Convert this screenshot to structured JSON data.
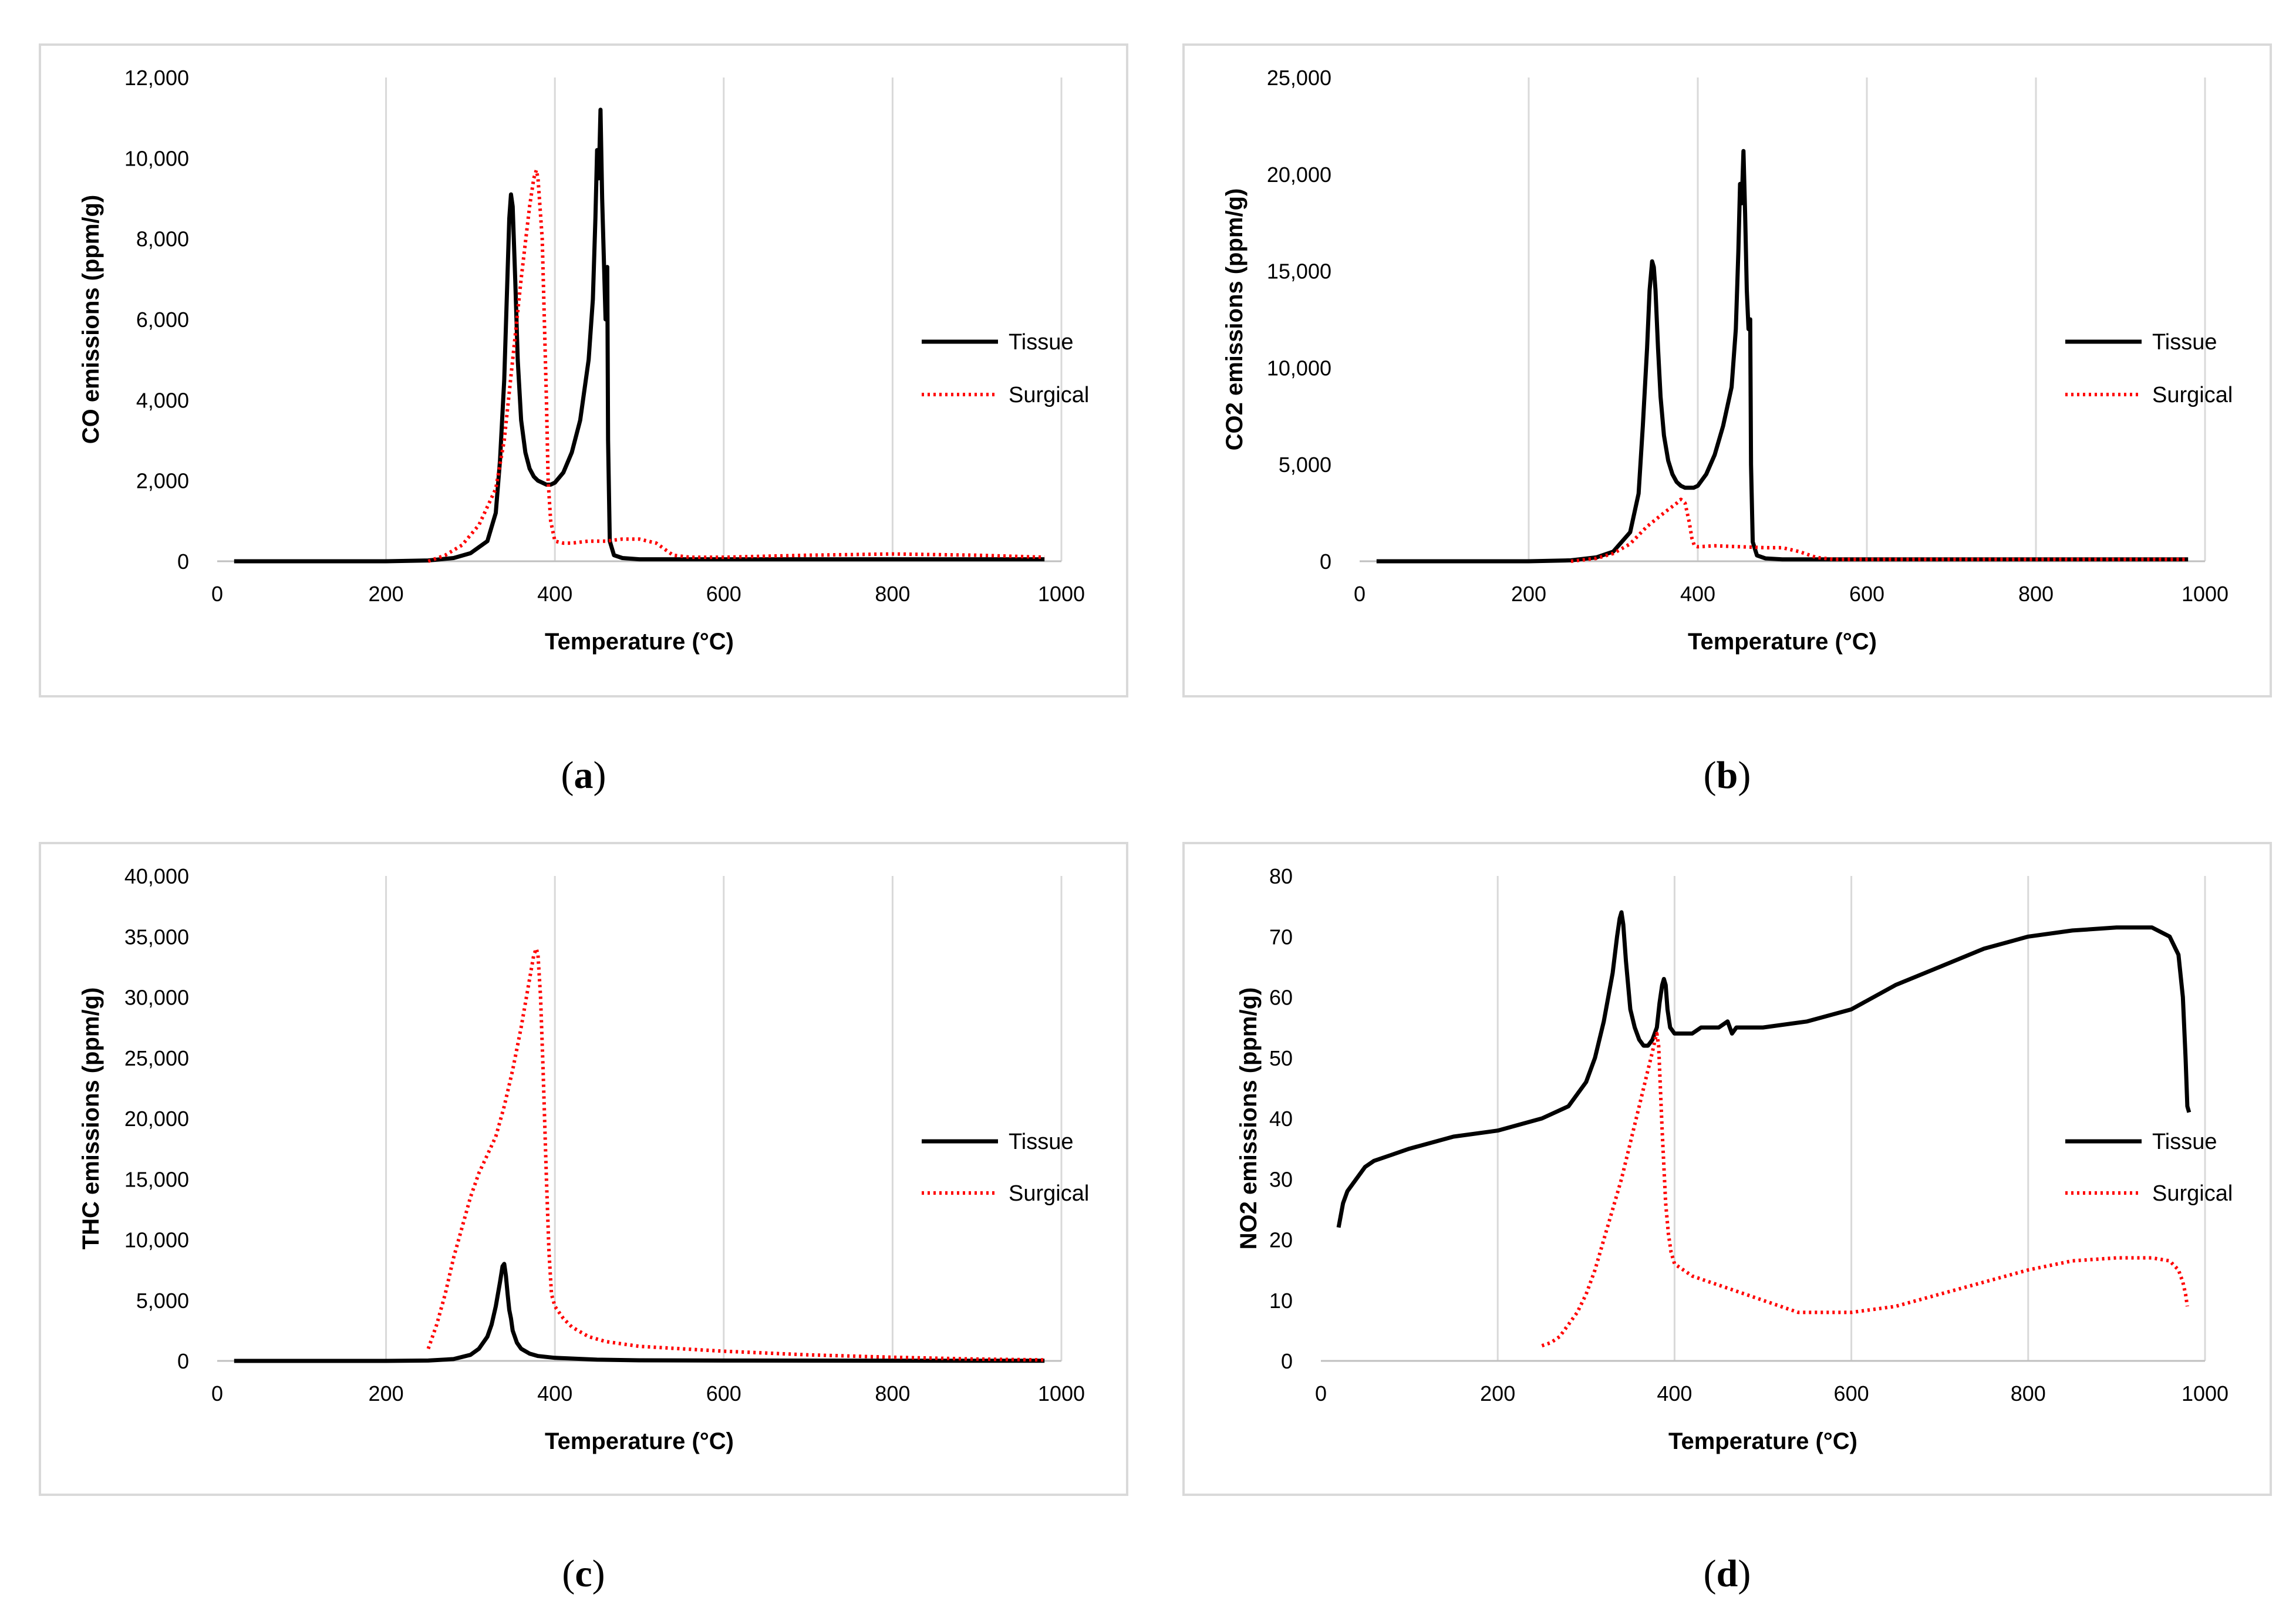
{
  "chart_data": [
    {
      "id": "a",
      "type": "line",
      "caption_letter": "a",
      "ylabel": "CO emissions  (ppm/g)",
      "xlabel": "Temperature (°C)",
      "xlim": [
        0,
        1000
      ],
      "ylim": [
        0,
        12000
      ],
      "xticks": [
        0,
        200,
        400,
        600,
        800,
        1000
      ],
      "xtick_labels": [
        "0",
        "200",
        "400",
        "600",
        "800",
        "1000"
      ],
      "yticks": [
        0,
        2000,
        4000,
        6000,
        8000,
        10000,
        12000
      ],
      "ytick_labels": [
        "0",
        "2,000",
        "4,000",
        "6,000",
        "8,000",
        "10,000",
        "12,000"
      ],
      "grid": "vertical",
      "legend": "center-right",
      "series": [
        {
          "name": "Tissue",
          "color": "#000000",
          "style": "solid",
          "x": [
            20,
            200,
            250,
            280,
            300,
            320,
            330,
            335,
            340,
            343,
            346,
            348,
            350,
            353,
            356,
            360,
            365,
            370,
            375,
            380,
            385,
            390,
            395,
            400,
            410,
            420,
            430,
            440,
            445,
            448,
            450,
            452,
            454,
            456,
            458,
            460,
            462,
            463,
            465,
            470,
            480,
            500,
            600,
            800,
            980
          ],
          "y": [
            0,
            0,
            20,
            80,
            200,
            500,
            1200,
            2500,
            4500,
            6500,
            8500,
            9100,
            8800,
            7000,
            5000,
            3500,
            2700,
            2300,
            2100,
            2000,
            1950,
            1900,
            1900,
            1950,
            2200,
            2700,
            3500,
            5000,
            6500,
            8500,
            10200,
            9500,
            11200,
            9000,
            7500,
            6000,
            7300,
            3000,
            500,
            150,
            80,
            50,
            50,
            50,
            50
          ]
        },
        {
          "name": "Surgical",
          "color": "#ff0000",
          "style": "dotted",
          "x": [
            250,
            270,
            290,
            310,
            330,
            340,
            350,
            360,
            370,
            375,
            378,
            380,
            385,
            390,
            392,
            395,
            400,
            410,
            420,
            440,
            460,
            480,
            500,
            520,
            540,
            560,
            600,
            700,
            800,
            900,
            980
          ],
          "y": [
            0,
            150,
            400,
            900,
            1800,
            3000,
            5000,
            7000,
            8800,
            9500,
            9700,
            9500,
            8000,
            4000,
            2000,
            1000,
            500,
            450,
            450,
            500,
            500,
            550,
            550,
            450,
            150,
            100,
            100,
            150,
            180,
            150,
            100
          ]
        }
      ]
    },
    {
      "id": "b",
      "type": "line",
      "caption_letter": "b",
      "ylabel": "CO2 emissions  (ppm/g)",
      "xlabel": "Temperature (°C)",
      "xlim": [
        0,
        1000
      ],
      "ylim": [
        0,
        25000
      ],
      "xticks": [
        0,
        200,
        400,
        600,
        800,
        1000
      ],
      "xtick_labels": [
        "0",
        "200",
        "400",
        "600",
        "800",
        "1000"
      ],
      "yticks": [
        0,
        5000,
        10000,
        15000,
        20000,
        25000
      ],
      "ytick_labels": [
        "0",
        "5,000",
        "10,000",
        "15,000",
        "20,000",
        "25,000"
      ],
      "grid": "vertical",
      "legend": "center-right",
      "series": [
        {
          "name": "Tissue",
          "color": "#000000",
          "style": "solid",
          "x": [
            20,
            200,
            250,
            280,
            300,
            320,
            330,
            335,
            340,
            343,
            346,
            348,
            350,
            353,
            356,
            360,
            365,
            370,
            375,
            380,
            385,
            390,
            395,
            400,
            410,
            420,
            430,
            440,
            445,
            448,
            450,
            452,
            454,
            456,
            458,
            460,
            462,
            463,
            465,
            470,
            480,
            500,
            600,
            800,
            980
          ],
          "y": [
            0,
            0,
            50,
            200,
            500,
            1500,
            3500,
            7000,
            11000,
            14000,
            15500,
            15200,
            14000,
            11000,
            8500,
            6500,
            5200,
            4500,
            4100,
            3900,
            3800,
            3800,
            3800,
            3900,
            4500,
            5500,
            7000,
            9000,
            12000,
            16000,
            19500,
            18500,
            21200,
            18000,
            14000,
            12000,
            12500,
            5000,
            1000,
            300,
            150,
            100,
            100,
            100,
            100
          ]
        },
        {
          "name": "Surgical",
          "color": "#ff0000",
          "style": "dotted",
          "x": [
            250,
            280,
            300,
            320,
            340,
            360,
            375,
            380,
            385,
            390,
            393,
            396,
            400,
            420,
            450,
            480,
            500,
            520,
            540,
            560,
            600,
            700,
            800,
            900,
            980
          ],
          "y": [
            0,
            150,
            400,
            900,
            1800,
            2500,
            3000,
            3200,
            3000,
            2000,
            1200,
            800,
            750,
            800,
            750,
            700,
            700,
            500,
            200,
            100,
            100,
            100,
            100,
            100,
            100
          ]
        }
      ]
    },
    {
      "id": "c",
      "type": "line",
      "caption_letter": "c",
      "ylabel": "THC emissions  (ppm/g)",
      "xlabel": "Temperature (°C)",
      "xlim": [
        0,
        1000
      ],
      "ylim": [
        0,
        40000
      ],
      "xticks": [
        0,
        200,
        400,
        600,
        800,
        1000
      ],
      "xtick_labels": [
        "0",
        "200",
        "400",
        "600",
        "800",
        "1000"
      ],
      "yticks": [
        0,
        5000,
        10000,
        15000,
        20000,
        25000,
        30000,
        35000,
        40000
      ],
      "ytick_labels": [
        "0",
        "5,000",
        "10,000",
        "15,000",
        "20,000",
        "25,000",
        "30,000",
        "35,000",
        "40,000"
      ],
      "grid": "vertical",
      "legend": "center-right",
      "series": [
        {
          "name": "Tissue",
          "color": "#000000",
          "style": "solid",
          "x": [
            20,
            200,
            250,
            280,
            300,
            310,
            320,
            325,
            330,
            335,
            338,
            340,
            342,
            344,
            346,
            348,
            350,
            355,
            360,
            370,
            380,
            400,
            450,
            500,
            600,
            800,
            980
          ],
          "y": [
            0,
            0,
            30,
            150,
            500,
            1000,
            2000,
            3000,
            4500,
            6500,
            7800,
            8000,
            7000,
            5500,
            4200,
            3500,
            2500,
            1500,
            1000,
            600,
            400,
            250,
            100,
            50,
            30,
            20,
            10
          ]
        },
        {
          "name": "Surgical",
          "color": "#ff0000",
          "style": "dotted",
          "x": [
            250,
            260,
            270,
            280,
            290,
            300,
            310,
            320,
            330,
            340,
            350,
            360,
            365,
            370,
            375,
            378,
            380,
            383,
            386,
            390,
            393,
            396,
            400,
            410,
            420,
            440,
            460,
            500,
            600,
            700,
            800,
            900,
            980
          ],
          "y": [
            1000,
            3000,
            5500,
            8500,
            11000,
            13500,
            15500,
            17000,
            18500,
            21000,
            24000,
            27500,
            29500,
            31500,
            33500,
            34000,
            33500,
            30000,
            24000,
            15000,
            9000,
            5500,
            4500,
            3500,
            2800,
            2000,
            1600,
            1200,
            800,
            500,
            300,
            150,
            80
          ]
        }
      ]
    },
    {
      "id": "d",
      "type": "line",
      "caption_letter": "d",
      "ylabel": "NO2 emissions  (ppm/g)",
      "xlabel": "Temperature (°C)",
      "xlim": [
        0,
        1000
      ],
      "ylim": [
        0,
        80
      ],
      "xticks": [
        0,
        200,
        400,
        600,
        800,
        1000
      ],
      "xtick_labels": [
        "0",
        "200",
        "400",
        "600",
        "800",
        "1000"
      ],
      "yticks": [
        0,
        10,
        20,
        30,
        40,
        50,
        60,
        70,
        80
      ],
      "ytick_labels": [
        "0",
        "10",
        "20",
        "30",
        "40",
        "50",
        "60",
        "70",
        "80"
      ],
      "grid": "vertical",
      "legend": "center-right",
      "series": [
        {
          "name": "Tissue",
          "color": "#000000",
          "style": "solid",
          "x": [
            20,
            25,
            30,
            40,
            50,
            60,
            80,
            100,
            150,
            200,
            250,
            280,
            300,
            310,
            320,
            330,
            335,
            338,
            340,
            342,
            345,
            350,
            355,
            360,
            365,
            370,
            375,
            380,
            383,
            386,
            388,
            390,
            392,
            395,
            400,
            410,
            420,
            430,
            440,
            450,
            460,
            465,
            470,
            500,
            550,
            600,
            650,
            700,
            750,
            800,
            850,
            900,
            940,
            960,
            970,
            975,
            978,
            980,
            982
          ],
          "y": [
            22,
            26,
            28,
            30,
            32,
            33,
            34,
            35,
            37,
            38,
            40,
            42,
            46,
            50,
            56,
            64,
            70,
            73,
            74,
            72,
            66,
            58,
            55,
            53,
            52,
            52,
            53,
            55,
            59,
            62,
            63,
            62,
            58,
            55,
            54,
            54,
            54,
            55,
            55,
            55,
            56,
            54,
            55,
            55,
            56,
            58,
            62,
            65,
            68,
            70,
            71,
            71.5,
            71.5,
            70,
            67,
            60,
            50,
            42,
            41
          ]
        },
        {
          "name": "Surgical",
          "color": "#ff0000",
          "style": "dotted",
          "x": [
            250,
            260,
            270,
            280,
            290,
            300,
            310,
            320,
            330,
            340,
            350,
            360,
            365,
            370,
            375,
            378,
            380,
            382,
            384,
            386,
            388,
            390,
            393,
            396,
            400,
            410,
            420,
            440,
            460,
            480,
            500,
            520,
            540,
            560,
            600,
            650,
            700,
            750,
            800,
            850,
            900,
            940,
            960,
            970,
            975,
            978,
            980
          ],
          "y": [
            2.5,
            3,
            4,
            6,
            8,
            11,
            15,
            20,
            25,
            30,
            36,
            42,
            45,
            48,
            51,
            53,
            54,
            52,
            45,
            38,
            32,
            26,
            21,
            18,
            16,
            15,
            14,
            13,
            12,
            11,
            10,
            9,
            8,
            8,
            8,
            9,
            11,
            13,
            15,
            16.5,
            17,
            17,
            16.5,
            15,
            13,
            11,
            9
          ]
        }
      ]
    }
  ]
}
